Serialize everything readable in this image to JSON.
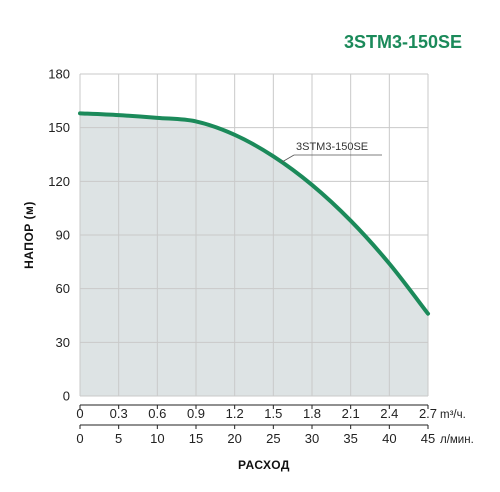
{
  "chart_data": {
    "type": "area",
    "title": "3STM3-150SE",
    "title_color": "#1b8a5a",
    "ylabel": "НАПОР (м)",
    "xlabel": "РАСХОД",
    "ylim": [
      0,
      180
    ],
    "y_ticks": [
      "0",
      "30",
      "60",
      "90",
      "120",
      "150",
      "180"
    ],
    "x_primary": {
      "unit": "m³/ч.",
      "ticks": [
        "0",
        "0.3",
        "0.6",
        "0.9",
        "1.2",
        "1.5",
        "1.8",
        "2.1",
        "2.4",
        "2.7"
      ],
      "range": [
        0,
        2.7
      ]
    },
    "x_secondary": {
      "unit": "л/мин.",
      "ticks": [
        "0",
        "5",
        "10",
        "15",
        "20",
        "25",
        "30",
        "35",
        "40",
        "45"
      ],
      "range": [
        0,
        45
      ]
    },
    "grid": true,
    "series": [
      {
        "name": "3STM3-150SE",
        "color": "#1b8a5a",
        "fill": "#dde3e4",
        "x": [
          0,
          0.3,
          0.6,
          0.9,
          1.2,
          1.5,
          1.8,
          2.1,
          2.4,
          2.7
        ],
        "y": [
          158,
          157,
          155.5,
          153.5,
          146,
          134,
          118,
          98,
          74,
          46
        ]
      }
    ]
  }
}
